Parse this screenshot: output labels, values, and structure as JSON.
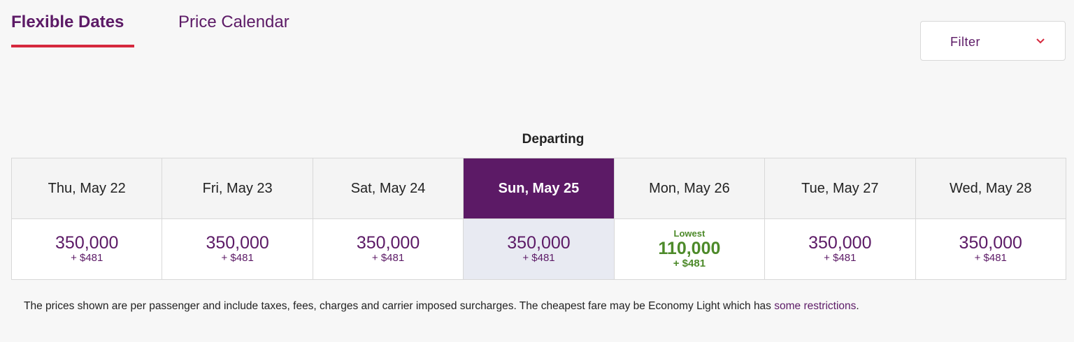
{
  "tabs": [
    {
      "label": "Flexible Dates",
      "active": true
    },
    {
      "label": "Price Calendar",
      "active": false
    }
  ],
  "filter": {
    "label": "Filter"
  },
  "heading": "Departing",
  "days": [
    {
      "date": "Thu, May 22",
      "points": "350,000",
      "taxes": "+ $481"
    },
    {
      "date": "Fri, May 23",
      "points": "350,000",
      "taxes": "+ $481"
    },
    {
      "date": "Sat, May 24",
      "points": "350,000",
      "taxes": "+ $481"
    },
    {
      "date": "Sun, May 25",
      "points": "350,000",
      "taxes": "+ $481",
      "selected": true
    },
    {
      "date": "Mon, May 26",
      "points": "110,000",
      "taxes": "+ $481",
      "badge": "Lowest"
    },
    {
      "date": "Tue, May 27",
      "points": "350,000",
      "taxes": "+ $481"
    },
    {
      "date": "Wed, May 28",
      "points": "350,000",
      "taxes": "+ $481"
    }
  ],
  "footer": {
    "text": "The prices shown are per passenger and include taxes, fees, charges and carrier imposed surcharges. The cheapest fare may be Economy Light which has ",
    "link": "some restrictions",
    "end": "."
  }
}
